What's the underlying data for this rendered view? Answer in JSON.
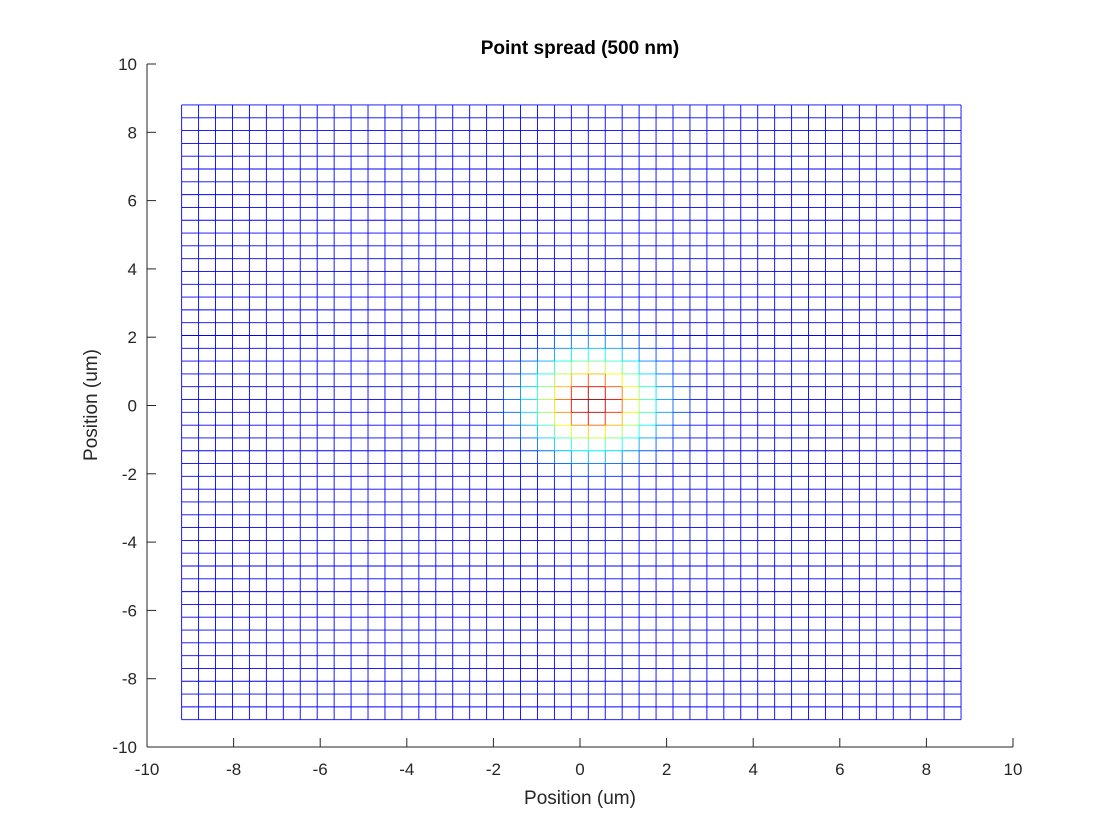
{
  "chart_data": {
    "type": "heatmap",
    "title": "Point spread (500 nm)",
    "xlabel": "Position (um)",
    "ylabel": "Position (um)",
    "xlim": [
      -10,
      10
    ],
    "ylim": [
      -10,
      10
    ],
    "xticks": [
      -10,
      -8,
      -6,
      -4,
      -2,
      0,
      2,
      4,
      6,
      8,
      10
    ],
    "yticks": [
      -10,
      -8,
      -6,
      -4,
      -2,
      0,
      2,
      4,
      6,
      8,
      10
    ],
    "xtick_labels": [
      "-10",
      "-8",
      "-6",
      "-4",
      "-2",
      "0",
      "2",
      "4",
      "6",
      "8",
      "10"
    ],
    "ytick_labels": [
      "-10",
      "-8",
      "-6",
      "-4",
      "-2",
      "0",
      "2",
      "4",
      "6",
      "8",
      "10"
    ],
    "grid": false,
    "mesh": {
      "x_range": [
        -9.2,
        8.8
      ],
      "y_range": [
        -9.2,
        8.8
      ],
      "columns": 46,
      "rows": 48,
      "peak_center": [
        0.3,
        0.1
      ],
      "peak_sigma_um": 0.9,
      "colormap": "jet"
    }
  }
}
